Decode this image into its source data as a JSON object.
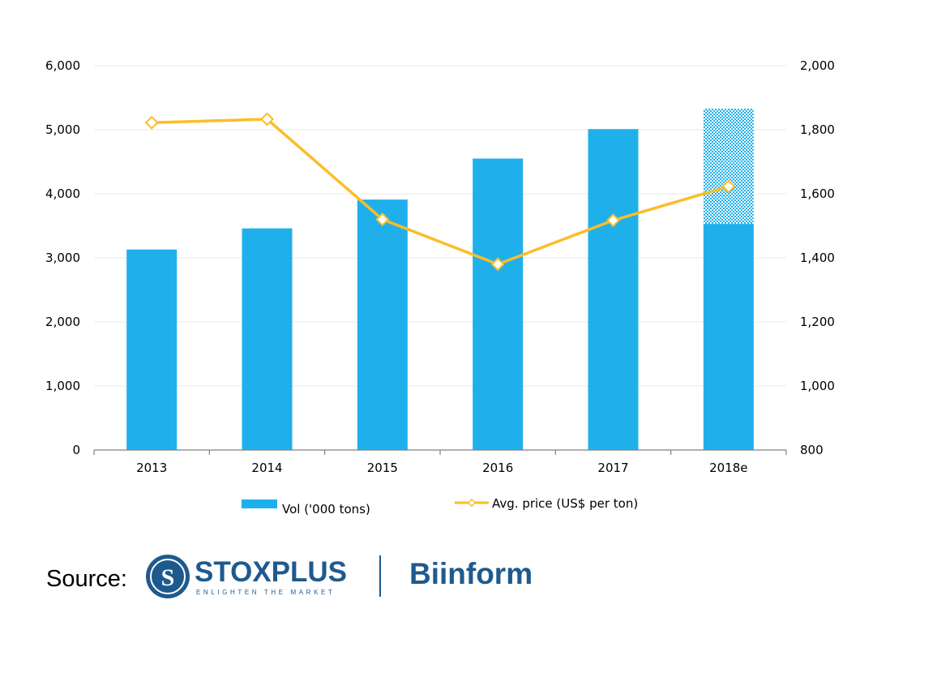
{
  "chart_data": {
    "type": "bar",
    "categories": [
      "2013",
      "2014",
      "2015",
      "2016",
      "2017",
      "2018e"
    ],
    "series": [
      {
        "name": "Vol ('000 tons)",
        "chart_type": "bar",
        "axis": "left",
        "color": "#1FB0EC",
        "values": [
          3130,
          3460,
          3910,
          4550,
          5010,
          5330
        ],
        "solid_portion_2018e": 3530
      },
      {
        "name": "Avg. price (US$ per ton)",
        "chart_type": "line",
        "axis": "right",
        "color": "#FBBD28",
        "marker": "diamond",
        "values": [
          1822,
          1833,
          1520,
          1380,
          1517,
          1623
        ]
      }
    ],
    "y_left": {
      "min": 0,
      "max": 6000,
      "step": 1000,
      "ticks": [
        "0",
        "1,000",
        "2,000",
        "3,000",
        "4,000",
        "5,000",
        "6,000"
      ]
    },
    "y_right": {
      "min": 800,
      "max": 2000,
      "step": 200,
      "ticks": [
        "800",
        "1,000",
        "1,200",
        "1,400",
        "1,600",
        "1,800",
        "2,000"
      ]
    },
    "grid": true,
    "legend_position": "bottom"
  },
  "footer": {
    "source_label": "Source:",
    "logo1_name": "STOXPLUS",
    "logo1_tagline": "ENLIGHTEN THE MARKET",
    "logo2_name": "Biinform"
  }
}
